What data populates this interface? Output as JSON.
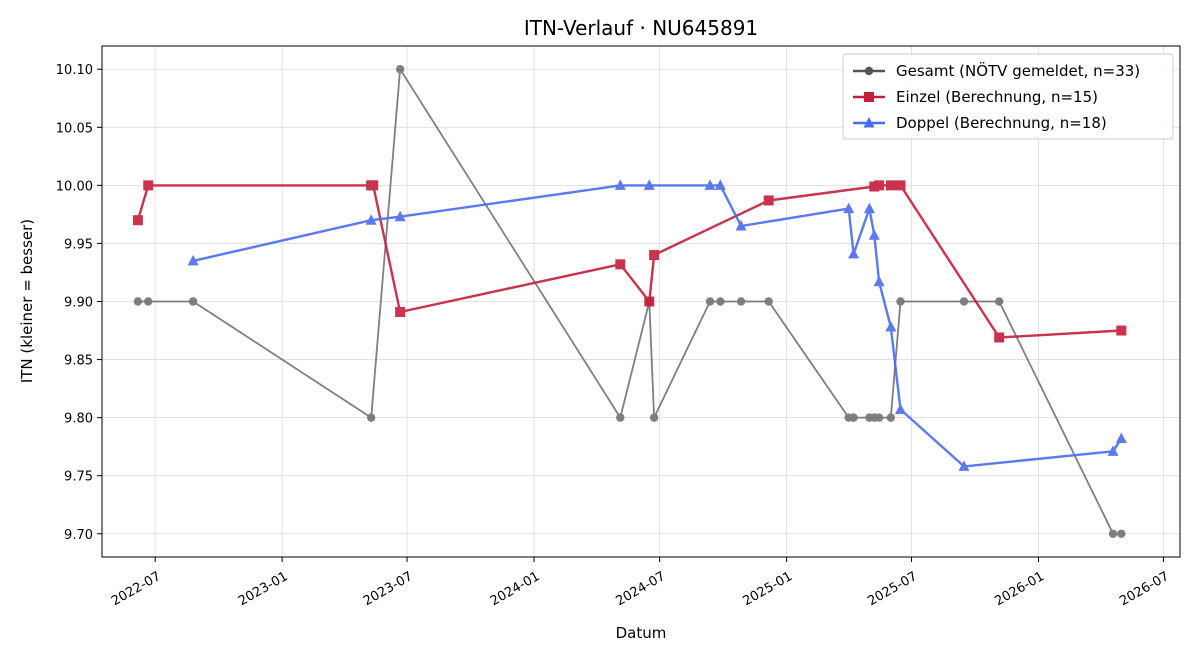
{
  "chart_data": {
    "type": "line",
    "title": "ITN-Verlauf · NU645891",
    "xlabel": "Datum",
    "ylabel": "ITN  (kleiner = besser)",
    "xlim": [
      "2022-04-15",
      "2026-07-25"
    ],
    "ylim": [
      9.68,
      10.12
    ],
    "x_ticks": [
      "2022-07-01",
      "2023-01-01",
      "2023-07-01",
      "2024-01-01",
      "2024-07-01",
      "2025-01-01",
      "2025-07-01",
      "2026-01-01",
      "2026-07-01"
    ],
    "x_tick_labels": [
      "2022-07",
      "2023-01",
      "2023-07",
      "2024-01",
      "2024-07",
      "2025-01",
      "2025-07",
      "2026-01",
      "2026-07"
    ],
    "y_ticks": [
      9.7,
      9.75,
      9.8,
      9.85,
      9.9,
      9.95,
      10.0,
      10.05,
      10.1
    ],
    "y_tick_labels": [
      "9.70",
      "9.75",
      "9.80",
      "9.85",
      "9.90",
      "9.95",
      "10.00",
      "10.05",
      "10.10"
    ],
    "grid": true,
    "legend_position": "top-right",
    "series": [
      {
        "name": "Gesamt (NÖTV gemeldet, n=33)",
        "color": "#555555",
        "marker": "circle",
        "points": [
          {
            "x": "2022-06-06",
            "y": 9.9
          },
          {
            "x": "2022-06-21",
            "y": 9.9
          },
          {
            "x": "2022-08-25",
            "y": 9.9
          },
          {
            "x": "2023-05-10",
            "y": 9.8
          },
          {
            "x": "2023-06-21",
            "y": 10.1
          },
          {
            "x": "2024-05-05",
            "y": 9.8
          },
          {
            "x": "2024-06-16",
            "y": 9.9
          },
          {
            "x": "2024-06-23",
            "y": 9.8
          },
          {
            "x": "2024-09-12",
            "y": 9.9
          },
          {
            "x": "2024-09-27",
            "y": 9.9
          },
          {
            "x": "2024-10-27",
            "y": 9.9
          },
          {
            "x": "2024-12-06",
            "y": 9.9
          },
          {
            "x": "2025-04-01",
            "y": 9.8
          },
          {
            "x": "2025-04-08",
            "y": 9.8
          },
          {
            "x": "2025-05-01",
            "y": 9.8
          },
          {
            "x": "2025-05-08",
            "y": 9.8
          },
          {
            "x": "2025-05-15",
            "y": 9.8
          },
          {
            "x": "2025-06-01",
            "y": 9.8
          },
          {
            "x": "2025-06-15",
            "y": 9.9
          },
          {
            "x": "2025-09-15",
            "y": 9.9
          },
          {
            "x": "2025-11-05",
            "y": 9.9
          },
          {
            "x": "2026-04-19",
            "y": 9.7
          },
          {
            "x": "2026-05-01",
            "y": 9.7
          }
        ]
      },
      {
        "name": "Einzel (Berechnung, n=15)",
        "color": "#c41e3a",
        "marker": "square",
        "points": [
          {
            "x": "2022-06-06",
            "y": 9.97
          },
          {
            "x": "2022-06-21",
            "y": 10.0
          },
          {
            "x": "2023-05-10",
            "y": 10.0
          },
          {
            "x": "2023-05-13",
            "y": 10.0
          },
          {
            "x": "2023-06-21",
            "y": 9.891
          },
          {
            "x": "2024-05-05",
            "y": 9.932
          },
          {
            "x": "2024-06-16",
            "y": 9.9
          },
          {
            "x": "2024-06-23",
            "y": 9.94
          },
          {
            "x": "2024-12-06",
            "y": 9.987
          },
          {
            "x": "2025-05-08",
            "y": 9.999
          },
          {
            "x": "2025-05-15",
            "y": 10.0
          },
          {
            "x": "2025-06-01",
            "y": 10.0
          },
          {
            "x": "2025-06-15",
            "y": 10.0
          },
          {
            "x": "2025-11-05",
            "y": 9.869
          },
          {
            "x": "2026-05-01",
            "y": 9.875
          }
        ]
      },
      {
        "name": "Doppel (Berechnung, n=18)",
        "color": "#4a6cf0",
        "marker": "triangle",
        "points": [
          {
            "x": "2022-08-25",
            "y": 9.935
          },
          {
            "x": "2023-05-10",
            "y": 9.97
          },
          {
            "x": "2023-06-21",
            "y": 9.973
          },
          {
            "x": "2024-05-05",
            "y": 10.0
          },
          {
            "x": "2024-06-16",
            "y": 10.0
          },
          {
            "x": "2024-09-12",
            "y": 10.0
          },
          {
            "x": "2024-09-27",
            "y": 10.0
          },
          {
            "x": "2024-10-27",
            "y": 9.965
          },
          {
            "x": "2025-04-01",
            "y": 9.98
          },
          {
            "x": "2025-04-08",
            "y": 9.941
          },
          {
            "x": "2025-05-01",
            "y": 9.98
          },
          {
            "x": "2025-05-08",
            "y": 9.957
          },
          {
            "x": "2025-05-15",
            "y": 9.917
          },
          {
            "x": "2025-06-01",
            "y": 9.878
          },
          {
            "x": "2025-06-15",
            "y": 9.807
          },
          {
            "x": "2025-09-15",
            "y": 9.758
          },
          {
            "x": "2026-04-19",
            "y": 9.771
          },
          {
            "x": "2026-05-01",
            "y": 9.782
          }
        ]
      }
    ]
  }
}
